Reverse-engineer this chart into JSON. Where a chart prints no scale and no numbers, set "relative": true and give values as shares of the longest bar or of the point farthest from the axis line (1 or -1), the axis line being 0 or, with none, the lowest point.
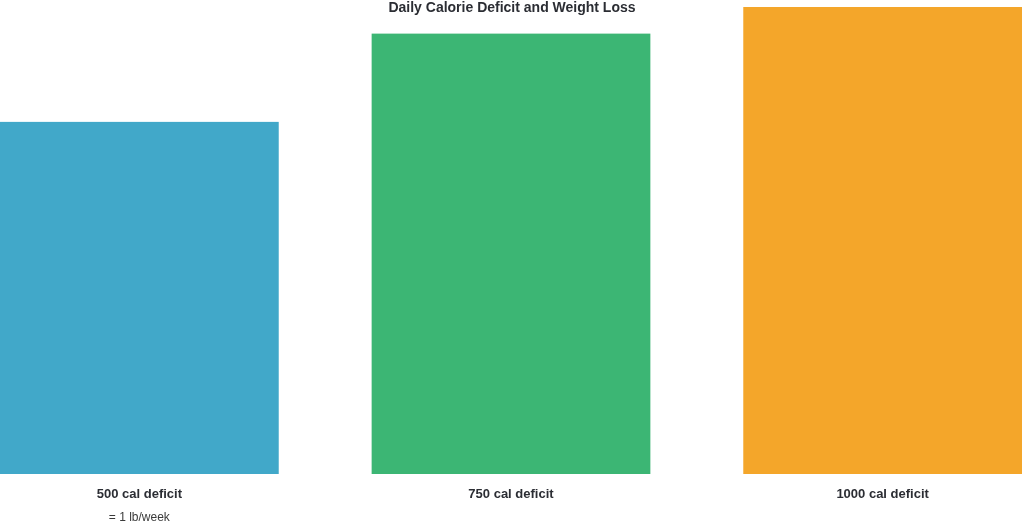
{
  "chart_data": {
    "type": "bar",
    "title": "Daily Calorie Deficit and Weight Loss",
    "categories": [
      "500 cal deficit",
      "750 cal deficit",
      "1000 cal deficit"
    ],
    "values": [
      0.754,
      0.943,
      1
    ],
    "colors": [
      "#41a8c9",
      "#3cb674",
      "#f4a62a"
    ],
    "relative": true,
    "annotations": [
      "= 1 lb/week"
    ]
  }
}
